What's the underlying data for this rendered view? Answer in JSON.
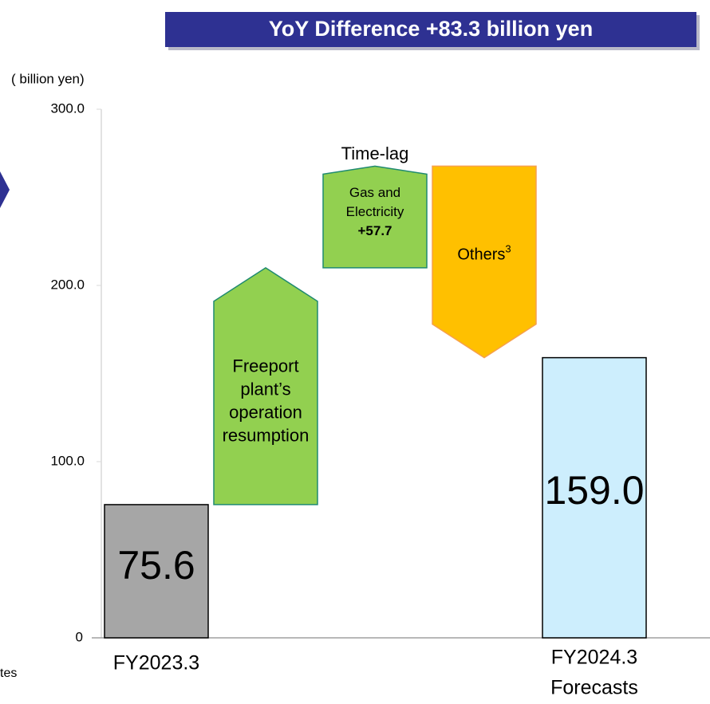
{
  "chart_data": {
    "type": "waterfall",
    "title": "YoY Difference +83.3 billion yen",
    "y_axis_label": "( billion yen)",
    "left_fragment": "tes",
    "categories": [
      [
        "FY2023.3"
      ],
      [
        "Freeport",
        "plant’s",
        "operation",
        "resumption"
      ],
      [
        "Time-lag",
        "Gas and",
        "Electricity"
      ],
      [
        "Others"
      ],
      [
        "FY2024.3",
        "Forecasts"
      ]
    ],
    "category_notes": [
      null,
      null,
      null,
      "3",
      null
    ],
    "measure": [
      "absolute",
      "relative",
      "relative",
      "relative",
      "total"
    ],
    "values": [
      75.6,
      134.4,
      57.7,
      -108.7,
      159.0
    ],
    "value_labels": [
      "75.6",
      null,
      "+57.7",
      null,
      "159.0"
    ],
    "colors": [
      "#a6a6a6",
      "#92d050",
      "#92d050",
      "#ffc000",
      "#cdeefd"
    ],
    "ylim": [
      0,
      300
    ],
    "yticks": [
      0,
      {
        "value": 100,
        "label": "100.0"
      },
      {
        "value": 200,
        "label": "200.0"
      },
      {
        "value": 300,
        "label": "300.0"
      }
    ]
  }
}
